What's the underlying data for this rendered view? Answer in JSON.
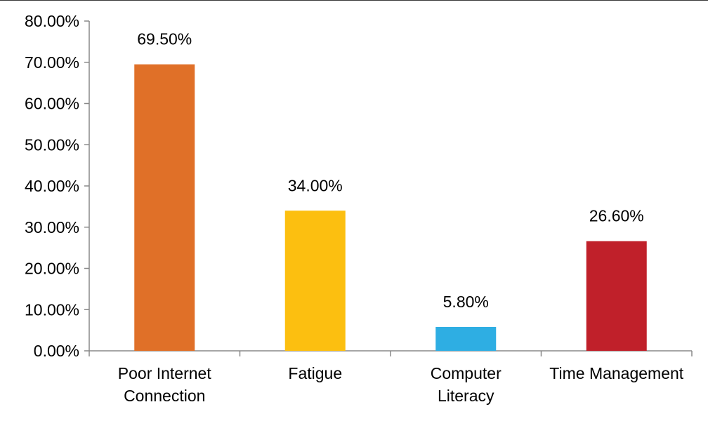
{
  "chart_data": {
    "type": "bar",
    "title": "",
    "xlabel": "",
    "ylabel": "",
    "categories": [
      [
        "Poor Internet",
        "Connection"
      ],
      [
        "Fatigue"
      ],
      [
        "Computer",
        "Literacy"
      ],
      [
        "Time Management"
      ]
    ],
    "values": [
      69.5,
      34.0,
      5.8,
      26.6
    ],
    "data_labels": [
      "69.50%",
      "34.00%",
      "5.80%",
      "26.60%"
    ],
    "colors": [
      "#e07028",
      "#fcbf10",
      "#2eaee3",
      "#c0202a"
    ],
    "ylim": [
      0,
      80
    ],
    "yticks": [
      0,
      10,
      20,
      30,
      40,
      50,
      60,
      70,
      80
    ],
    "ytick_labels": [
      "0.00%",
      "10.00%",
      "20.00%",
      "30.00%",
      "40.00%",
      "50.00%",
      "60.00%",
      "70.00%",
      "80.00%"
    ],
    "grid": false,
    "legend": "none"
  }
}
